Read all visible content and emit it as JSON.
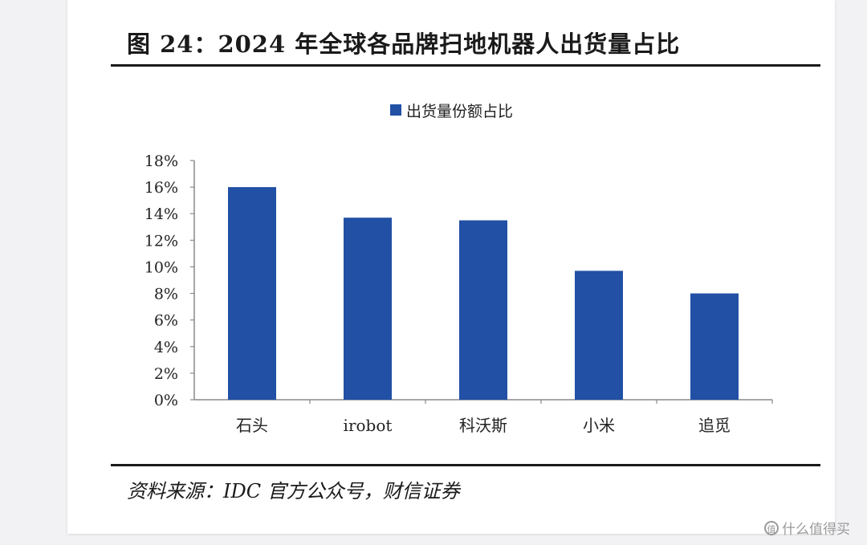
{
  "figure": {
    "title": "图 24：2024 年全球各品牌扫地机器人出货量占比",
    "source": "资料来源：IDC 官方公众号，财信证券"
  },
  "watermark": {
    "icon": "值",
    "text": "什么值得买"
  },
  "chart_data": {
    "type": "bar",
    "categories": [
      "石头",
      "irobot",
      "科沃斯",
      "小米",
      "追觅"
    ],
    "series": [
      {
        "name": "出货量份额占比",
        "values": [
          16.0,
          13.7,
          13.5,
          9.7,
          8.0
        ],
        "color": "#2150a5"
      }
    ],
    "y_ticks": [
      "0%",
      "2%",
      "4%",
      "6%",
      "8%",
      "10%",
      "12%",
      "14%",
      "16%",
      "18%"
    ],
    "ylim": [
      0,
      18
    ],
    "y_unit": "%",
    "legend_position": "top",
    "grid": false
  }
}
